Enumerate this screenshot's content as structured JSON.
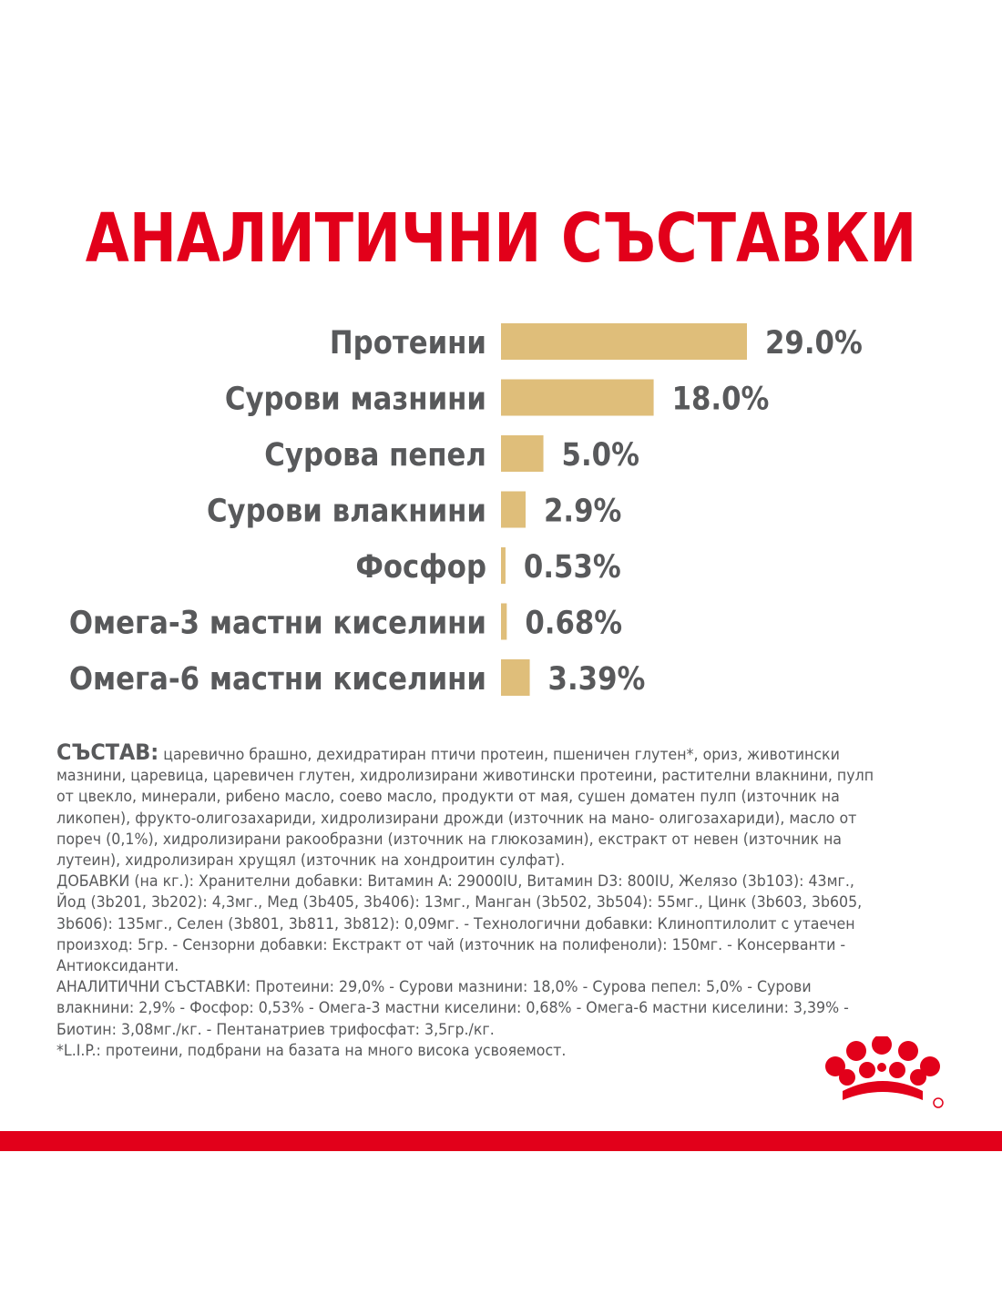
{
  "colors": {
    "title": "#e2001a",
    "bar": "#dfbe7a",
    "label": "#58595b",
    "text": "#58595b",
    "brand_red": "#e2001a"
  },
  "chart_data": {
    "type": "bar",
    "orientation": "horizontal",
    "title": "АНАЛИТИЧНИ СЪСТАВКИ",
    "categories": [
      "Протеини",
      "Сурови мазнини",
      "Сурова пепел",
      "Сурови влакнини",
      "Фосфор",
      "Омега-3 мастни киселини",
      "Омега-6 мастни киселини"
    ],
    "values": [
      29.0,
      18.0,
      5.0,
      2.9,
      0.53,
      0.68,
      3.39
    ],
    "value_labels": [
      "29.0%",
      "18.0%",
      "5.0%",
      "2.9%",
      "0.53%",
      "0.68%",
      "3.39%"
    ],
    "xlim": [
      0,
      29.0
    ],
    "grid": false,
    "legend": "none",
    "axes_visible": false
  },
  "composition": {
    "lead": "СЪСТАВ:",
    "ingredients": " царевично брашно, дехидратиран птичи протеин, пшеничен глутен*, ориз, животински мазнини, царевица, царевичен глутен, хидролизирани животински протеини, растителни влакнини, пулп от цвекло, минерали, рибено масло, соево масло, продукти от мая, сушен доматен пулп (източник на ликопен), фрукто-олигозахариди, хидролизирани дрожди (източник на мано- олигозахариди), масло от пореч (0,1%), хидролизирани ракообразни (източник на глюкозамин), екстракт от невен (източник на лутеин), хидролизиран хрущял (източник на хондроитин сулфат).",
    "additives": "ДОБАВКИ (на кг.): Хранителни добавки: Витамин A: 29000IU, Витамин D3: 800IU, Желязо (3b103): 43мг., Йод (3b201, 3b202): 4,3мг., Мед (3b405, 3b406): 13мг., Манган (3b502, 3b504): 55мг., Цинк (3b603, 3b605, 3b606): 135мг., Селен (3b801, 3b811, 3b812): 0,09мг. - Технологични добавки: Клиноптилолит с утаечен произход: 5гр. - Сензорни добавки: Екстракт от чай (източник на полифеноли): 150мг. - Консерванти - Антиоксиданти.",
    "analytical": "АНАЛИТИЧНИ СЪСТАВКИ: Протеини: 29,0% - Сурови мазнини: 18,0% - Сурова пепел: 5,0% - Сурови влакнини: 2,9% - Фосфор: 0,53% - Омега-3 мастни киселини: 0,68% - Омега-6 мастни киселини: 3,39% - Биотин: 3,08мг./кг. - Пентанатриев трифосфат: 3,5гр./кг.",
    "footnote": "*L.I.P.: протеини, подбрани на базата на много висока усвояемост."
  }
}
